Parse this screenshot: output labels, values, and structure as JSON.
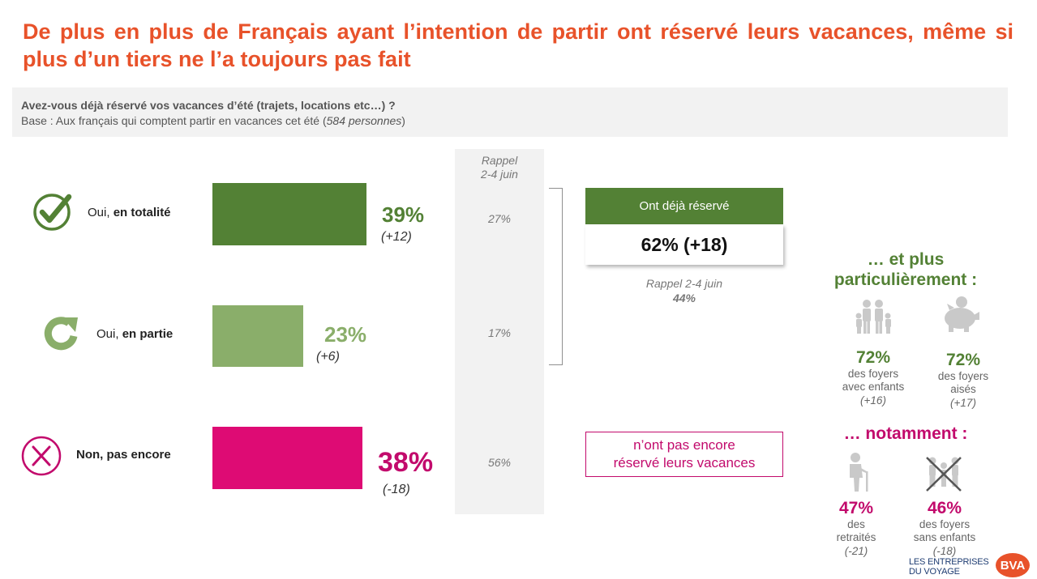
{
  "title": "De plus en plus de Français ayant l’intention de partir ont réservé leurs vacances, même si plus d’un tiers ne l’a toujours pas fait",
  "question": {
    "main": "Avez-vous déjà réservé vos vacances d’été (trajets, locations etc…) ?",
    "base_prefix": "Base : Aux français qui comptent partir en vacances cet été (",
    "base_italic": "584 personnes",
    "base_suffix": ")"
  },
  "recall": {
    "header_line1": "Rappel",
    "header_line2": "2-4 juin"
  },
  "colors": {
    "title": "#e8522a",
    "dark_green": "#538135",
    "light_green": "#8aae6a",
    "pink": "#de0b74",
    "pink_text": "#c20a6c"
  },
  "chart_data": {
    "type": "bar",
    "orientation": "horizontal",
    "categories": [
      "Oui, en totalité",
      "Oui, en partie",
      "Non, pas encore"
    ],
    "values": [
      39,
      23,
      38
    ],
    "unit": "%",
    "changes": [
      "(+12)",
      "(+6)",
      "(-18)"
    ],
    "recall_values": [
      "27%",
      "17%",
      "56%"
    ],
    "bars": [
      {
        "label_plain": "Oui, ",
        "label_bold": "en totalité",
        "value": 39,
        "value_label": "39%",
        "change": "(+12)",
        "recall": "27%",
        "icon": "check-circle-icon",
        "color": "#538135"
      },
      {
        "label_plain": "Oui, ",
        "label_bold": "en partie",
        "value": 23,
        "value_label": "23%",
        "change": "(+6)",
        "recall": "17%",
        "icon": "refresh-circle-icon",
        "color": "#8aae6a"
      },
      {
        "label_plain": "",
        "label_bold": "Non, pas encore",
        "value": 38,
        "value_label": "38%",
        "change": "(-18)",
        "recall": "56%",
        "icon": "x-circle-icon",
        "color": "#de0b74"
      }
    ]
  },
  "summary_box": {
    "header": "Ont déjà réservé",
    "value": "62% (+18)",
    "recall_label": "Rappel 2-4 juin",
    "recall_value": "44%"
  },
  "not_yet_box": {
    "line1": "n’ont pas encore",
    "line2": "réservé leurs vacances"
  },
  "particularly": {
    "title_line1": "… et plus",
    "title_line2": "particulièrement :",
    "items": [
      {
        "icon": "family-icon",
        "value": "72%",
        "desc_line1": "des foyers",
        "desc_line2": "avec enfants",
        "change": "(+16)"
      },
      {
        "icon": "piggy-bank-icon",
        "value": "72%",
        "desc_line1": "des foyers",
        "desc_line2": "aisés",
        "change": "(+17)"
      }
    ]
  },
  "notably": {
    "title": "… notamment :",
    "items": [
      {
        "icon": "elderly-person-icon",
        "value": "47%",
        "desc_line1": "des",
        "desc_line2": "retraités",
        "change": "(-21)"
      },
      {
        "icon": "no-children-icon",
        "value": "46%",
        "desc_line1": "des foyers",
        "desc_line2": "sans enfants",
        "change": "(-18)"
      }
    ]
  },
  "logos": {
    "lev_line1": "LES ENTREPRISES",
    "lev_line2": "DU VOYAGE",
    "bva": "BVA"
  }
}
